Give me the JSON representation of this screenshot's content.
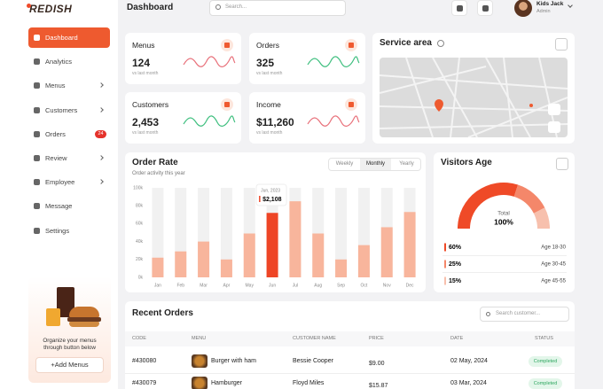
{
  "sidebar": {
    "logo": "REDISH",
    "menu": [
      {
        "label": "Dashboard"
      },
      {
        "label": "Analytics"
      },
      {
        "label": "Menus"
      },
      {
        "label": "Customers"
      },
      {
        "label": "Orders",
        "badge": 24
      },
      {
        "label": "Review"
      },
      {
        "label": "Employee"
      },
      {
        "label": "Message"
      },
      {
        "label": "Settings"
      }
    ],
    "promo_text": "Organize your menus through button below",
    "promo_button": "+Add Menus"
  },
  "header": {
    "title": "Dashboard",
    "search_placeholder": "Search...",
    "user_name": "Kids Jack",
    "user_role": "Admin"
  },
  "stats": [
    {
      "label": "Menus",
      "value": "124",
      "note": "vs last month",
      "color": "#e8707a"
    },
    {
      "label": "Orders",
      "value": "325",
      "note": "vs last month",
      "color": "#3fbf7f"
    },
    {
      "label": "Customers",
      "value": "2,453",
      "note": "vs last month",
      "color": "#3fbf7f"
    },
    {
      "label": "Income",
      "value": "$11,260",
      "note": "vs last month",
      "color": "#e8707a"
    }
  ],
  "service_area": {
    "title": "Service area"
  },
  "chart_data": {
    "type": "bar",
    "title": "Order Rate",
    "subtitle": "Order activity this year",
    "tabs": [
      "Weekly",
      "Monthly",
      "Yearly"
    ],
    "categories": [
      "Jan",
      "Feb",
      "Mar",
      "Apr",
      "May",
      "Jun",
      "Jul",
      "Aug",
      "Sep",
      "Oct",
      "Nov",
      "Dec"
    ],
    "values": [
      22,
      29,
      40,
      20,
      49,
      72,
      85,
      49,
      20,
      36,
      56,
      73
    ],
    "colors": [
      "#f8b59c",
      "#f8b59c",
      "#f8b59c",
      "#f8b59c",
      "#f8b59c",
      "#ee4526",
      "#f8b59c",
      "#f8b59c",
      "#f8b59c",
      "#f8b59c",
      "#f8b59c",
      "#f8b59c"
    ],
    "ylim": [
      0,
      100
    ],
    "yticks": [
      {
        "value": 0,
        "label": "0k"
      },
      {
        "value": 20,
        "label": "20k"
      },
      {
        "value": 40,
        "label": "40k"
      },
      {
        "value": 60,
        "label": "60k"
      },
      {
        "value": 80,
        "label": "80k"
      },
      {
        "value": 100,
        "label": "100k"
      }
    ],
    "annotations": [
      {
        "title": "Jun, 2023",
        "text": "$2,108"
      }
    ]
  },
  "visitors_age": {
    "title": "Visitors Age",
    "center_label": "Total",
    "center_value": "100%",
    "categories": [
      "Age 18-30",
      "Age 30-45",
      "Age 45-55"
    ],
    "values": [
      60,
      25,
      15
    ],
    "value_labels": [
      "60%",
      "25%",
      "15%"
    ],
    "colors": [
      "#ef4a27",
      "#f4876a",
      "#f7c0ad"
    ]
  },
  "recent_orders": {
    "title": "Recent Orders",
    "search_placeholder": "Search customer...",
    "columns": [
      "CODE",
      "MENU",
      "CUSTOMER NAME",
      "PRICE",
      "DATE",
      "STATUS"
    ],
    "rows": [
      [
        "#430080",
        "Burger with ham",
        "Bessie Cooper",
        "$9.00",
        "02 May, 2024",
        "Completed"
      ],
      [
        "#430079",
        "Hamburger",
        "Floyd Miles",
        "$15.87",
        "03 Mar, 2024",
        "Completed"
      ]
    ]
  }
}
